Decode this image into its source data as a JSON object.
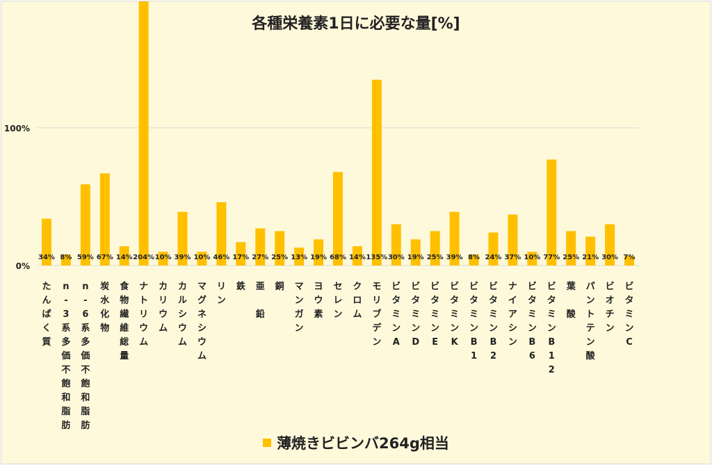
{
  "chart_data": {
    "type": "bar",
    "title": "各種栄養素1日に必要な量[%]",
    "categories": [
      "たんぱく質",
      "n-3系多価不飽和脂肪酸",
      "n-6系多価不飽和脂肪酸",
      "炭水化物",
      "食物繊維総量",
      "ナトリウム",
      "カリウム",
      "カルシウム",
      "マグネシウム",
      "リン",
      "鉄",
      "亜 鉛",
      "銅",
      "マンガン",
      "ヨウ素",
      "セレン",
      "クロム",
      "モリブデン",
      "ビタミンA",
      "ビタミンD",
      "ビタミンE",
      "ビタミンK",
      "ビタミンB1",
      "ビタミンB2",
      "ナイアシン",
      "ビタミンB6",
      "ビタミンB12",
      "葉 酸",
      "パントテン酸",
      "ビオチン",
      "ビタミンC"
    ],
    "series": [
      {
        "name": "薄焼きビビンバ264g相当",
        "values": [
          34,
          8,
          59,
          67,
          14,
          204,
          10,
          39,
          10,
          46,
          17,
          27,
          25,
          13,
          19,
          68,
          14,
          135,
          30,
          19,
          25,
          39,
          8,
          24,
          37,
          10,
          77,
          25,
          21,
          30,
          7
        ],
        "labels": [
          "34%",
          "8%",
          "59%",
          "67%",
          "14%",
          "204%",
          "10%",
          "39%",
          "10%",
          "46%",
          "17%",
          "27%",
          "25%",
          "13%",
          "19%",
          "68%",
          "14%",
          "135%",
          "30%",
          "19%",
          "25%",
          "39%",
          "8%",
          "24%",
          "37%",
          "10%",
          "77%",
          "25%",
          "21%",
          "30%",
          "7%"
        ]
      }
    ],
    "yticks": [
      "0%",
      "100%"
    ],
    "ytick_values": [
      0,
      100
    ],
    "ylim": [
      0,
      200
    ],
    "grid": true,
    "legend_position": "bottom",
    "color": "#ffc000"
  }
}
